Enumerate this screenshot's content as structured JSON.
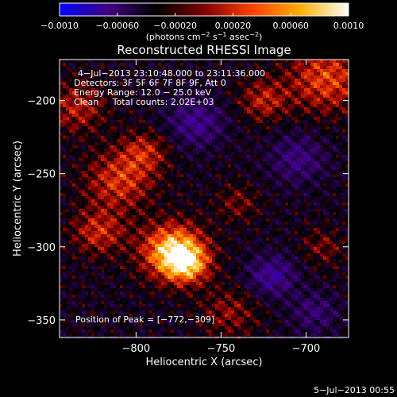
{
  "chart_data": {
    "type": "heatmap",
    "title": "Reconstructed RHESSI Image",
    "xlabel": "Heliocentric X (arcsec)",
    "ylabel": "Heliocentric Y (arcsec)",
    "xlim": [
      -845,
      -675
    ],
    "ylim": [
      -362,
      -172
    ],
    "x_ticks": [
      -800,
      -750,
      -700
    ],
    "x_tick_labels": [
      "−800",
      "−750",
      "−700"
    ],
    "y_ticks": [
      -200,
      -250,
      -300,
      -350
    ],
    "y_tick_labels": [
      "−200",
      "−250",
      "−300",
      "−350"
    ],
    "colorbar": {
      "range": [
        -0.001,
        0.001
      ],
      "ticks": [
        -0.001,
        -0.0006,
        -0.0002,
        0.0002,
        0.0006,
        0.001
      ],
      "tick_labels": [
        "−0.0010",
        "−0.00060",
        "−0.00020",
        "0.00020",
        "0.00060",
        "0.0010"
      ],
      "units_label": "(photons cm",
      "units_exp1": "−2",
      "units_mid": " s",
      "units_exp2": "−1",
      "units_mid2": " asec",
      "units_exp3": "−2",
      "units_end": ")",
      "colors": [
        "#0000ff",
        "#400080",
        "#000000",
        "#800000",
        "#ff4000",
        "#ffb000",
        "#ffffff"
      ]
    },
    "annotations": [
      "4−Jul−2013 23:10:48.000 to 23:11:36.000",
      "Detectors: 3F 5F 6F 7F 8F 9F, Att 0",
      "Energy Range: 12.0 − 25.0 keV",
      "Clean     Total counts: 2.02E+03"
    ],
    "peak_label": "Position of Peak = [−772,−309]",
    "peak": [
      -772,
      -309
    ],
    "footer_timestamp": "5−Jul−2013 00:55",
    "sources": [
      {
        "x": -778,
        "y": -303,
        "sigma": 13,
        "amp": 0.00095
      },
      {
        "x": -770,
        "y": -312,
        "sigma": 9,
        "amp": 0.0006
      },
      {
        "x": -810,
        "y": -255,
        "sigma": 14,
        "amp": 0.0005
      },
      {
        "x": -822,
        "y": -290,
        "sigma": 11,
        "amp": 0.00045
      },
      {
        "x": -795,
        "y": -235,
        "sigma": 10,
        "amp": 0.0004
      },
      {
        "x": -688,
        "y": -185,
        "sigma": 16,
        "amp": 0.00055
      },
      {
        "x": -725,
        "y": -200,
        "sigma": 10,
        "amp": 0.0004
      },
      {
        "x": -835,
        "y": -205,
        "sigma": 12,
        "amp": 0.0004
      },
      {
        "x": -745,
        "y": -345,
        "sigma": 12,
        "amp": 0.0003
      },
      {
        "x": -740,
        "y": -270,
        "sigma": 9,
        "amp": 0.00025
      },
      {
        "x": -690,
        "y": -300,
        "sigma": 9,
        "amp": 0.00025
      },
      {
        "x": -720,
        "y": -320,
        "sigma": 10,
        "amp": -0.00045
      },
      {
        "x": -765,
        "y": -215,
        "sigma": 12,
        "amp": -0.0004
      },
      {
        "x": -705,
        "y": -240,
        "sigma": 12,
        "amp": -0.00035
      },
      {
        "x": -695,
        "y": -345,
        "sigma": 10,
        "amp": -0.0003
      }
    ]
  }
}
